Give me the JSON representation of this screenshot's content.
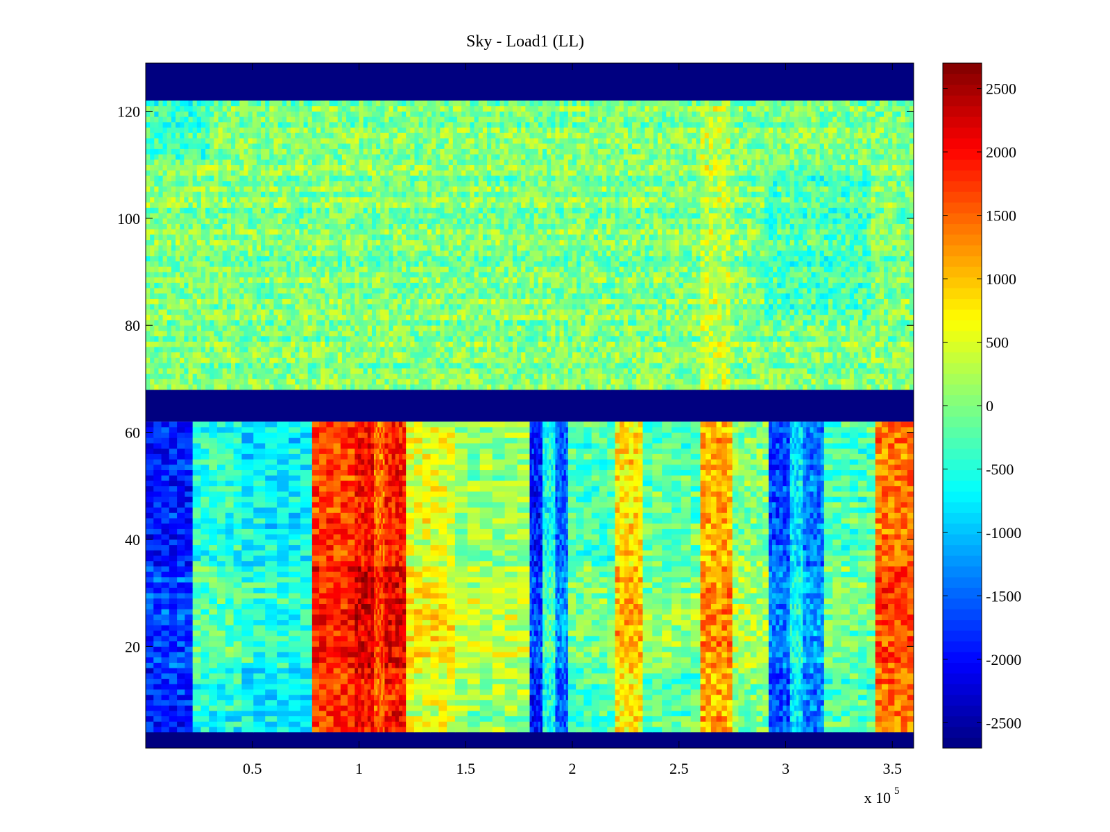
{
  "chart_data": {
    "type": "heatmap",
    "title": "Sky - Load1 (LL)",
    "xlabel": "",
    "ylabel": "",
    "x_multiplier_label": "x 10",
    "x_multiplier_exponent": "5",
    "xlim": [
      0,
      3.6
    ],
    "ylim": [
      1,
      129
    ],
    "xticks": [
      0.5,
      1,
      1.5,
      2,
      2.5,
      3,
      3.5
    ],
    "xtick_labels": [
      "0.5",
      "1",
      "1.5",
      "2",
      "2.5",
      "3",
      "3.5"
    ],
    "yticks": [
      20,
      40,
      60,
      80,
      100,
      120
    ],
    "ytick_labels": [
      "20",
      "40",
      "60",
      "80",
      "100",
      "120"
    ],
    "colormap": "jet",
    "clim": [
      -2700,
      2700
    ],
    "colorbar_ticks": [
      2500,
      2000,
      1500,
      1000,
      500,
      0,
      -500,
      -1000,
      -1500,
      -2000,
      -2500
    ],
    "colorbar_tick_labels": [
      "2500",
      "2000",
      "1500",
      "1000",
      "500",
      "0",
      "-500",
      "-1000",
      "-1500",
      "-2000",
      "-2500"
    ],
    "empty_row_bands": [
      [
        1,
        4
      ],
      [
        62,
        68
      ],
      [
        122,
        129
      ]
    ],
    "upper_block": {
      "rows": [
        68,
        122
      ],
      "typical_value": 0
    },
    "lower_block_column_bands": [
      {
        "x": [
          0.0,
          0.22
        ],
        "value": -1900
      },
      {
        "x": [
          0.22,
          0.45
        ],
        "value": -500
      },
      {
        "x": [
          0.45,
          0.78
        ],
        "value": -700
      },
      {
        "x": [
          0.78,
          0.98
        ],
        "value": 1700
      },
      {
        "x": [
          0.98,
          1.07
        ],
        "value": 2000
      },
      {
        "x": [
          1.07,
          1.12
        ],
        "value": 1500
      },
      {
        "x": [
          1.12,
          1.22
        ],
        "value": 1900
      },
      {
        "x": [
          1.22,
          1.45
        ],
        "value": 500
      },
      {
        "x": [
          1.45,
          1.8
        ],
        "value": 100
      },
      {
        "x": [
          1.8,
          1.86
        ],
        "value": -1900
      },
      {
        "x": [
          1.86,
          1.92
        ],
        "value": -600
      },
      {
        "x": [
          1.92,
          1.98
        ],
        "value": -1500
      },
      {
        "x": [
          1.98,
          2.2
        ],
        "value": -300
      },
      {
        "x": [
          2.2,
          2.33
        ],
        "value": 800
      },
      {
        "x": [
          2.33,
          2.6
        ],
        "value": -200
      },
      {
        "x": [
          2.6,
          2.75
        ],
        "value": 1100
      },
      {
        "x": [
          2.75,
          2.92
        ],
        "value": 0
      },
      {
        "x": [
          2.92,
          3.02
        ],
        "value": -1600
      },
      {
        "x": [
          3.02,
          3.08
        ],
        "value": -800
      },
      {
        "x": [
          3.08,
          3.18
        ],
        "value": -1400
      },
      {
        "x": [
          3.18,
          3.42
        ],
        "value": -300
      },
      {
        "x": [
          3.42,
          3.6
        ],
        "value": 1400
      }
    ]
  }
}
